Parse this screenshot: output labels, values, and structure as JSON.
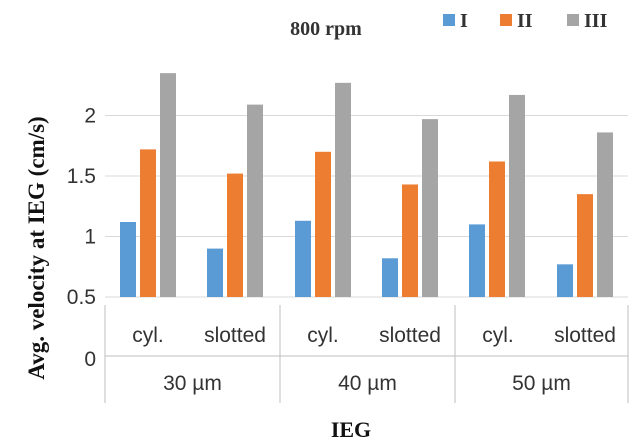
{
  "chart_data": {
    "type": "bar",
    "title": "800 rpm",
    "xlabel": "IEG",
    "ylabel": "Avg. velocity at IEG (cm/s)",
    "ylim": [
      0.5,
      2.5
    ],
    "yticks": [
      "0.5",
      "1",
      "1.5",
      "2"
    ],
    "ytick_values": [
      0.5,
      1,
      1.5,
      2
    ],
    "zero_label": "0",
    "grid": true,
    "legend_position": "top-right",
    "groups": [
      "30 µm",
      "40 µm",
      "50 µm"
    ],
    "subcategories": [
      "cyl.",
      "slotted"
    ],
    "categories": [
      "30 µm cyl.",
      "30 µm slotted",
      "40 µm cyl.",
      "40 µm slotted",
      "50 µm cyl.",
      "50 µm slotted"
    ],
    "series": [
      {
        "name": "I",
        "color": "#5b9bd5",
        "values": [
          1.12,
          0.9,
          1.13,
          0.82,
          1.1,
          0.77
        ]
      },
      {
        "name": "II",
        "color": "#ed7d31",
        "values": [
          1.72,
          1.52,
          1.7,
          1.43,
          1.62,
          1.35
        ]
      },
      {
        "name": "III",
        "color": "#a5a5a5",
        "values": [
          2.35,
          2.09,
          2.27,
          1.97,
          2.17,
          1.86
        ]
      }
    ]
  }
}
